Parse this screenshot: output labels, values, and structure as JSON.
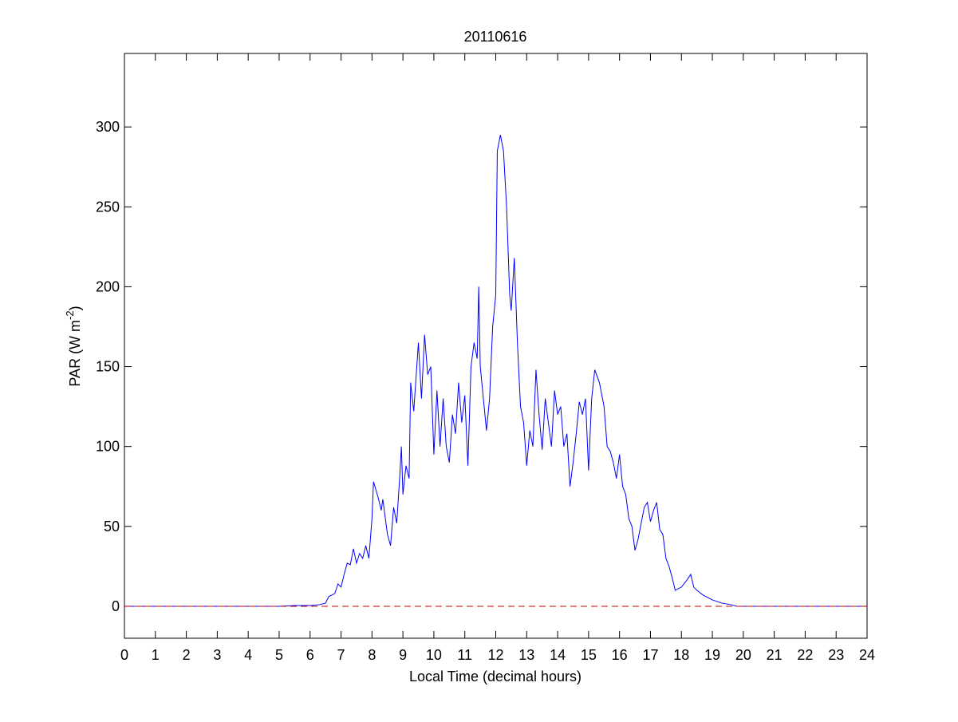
{
  "chart_data": {
    "type": "line",
    "title": "20110616",
    "x_label": "Local Time (decimal hours)",
    "y_label": {
      "text": "PAR (W m",
      "superscript": "-2",
      "suffix": ")"
    },
    "xlim": [
      0,
      24
    ],
    "xticks": [
      0,
      1,
      2,
      3,
      4,
      5,
      6,
      7,
      8,
      9,
      10,
      11,
      12,
      13,
      14,
      15,
      16,
      17,
      18,
      19,
      20,
      21,
      22,
      23,
      24
    ],
    "ylim": [
      -20,
      346
    ],
    "yticks": [
      0,
      50,
      100,
      150,
      200,
      250,
      300
    ],
    "reference_line": {
      "value": 0,
      "color": "#cc0000",
      "style": "dashed"
    },
    "series": [
      {
        "color": "#0000ff",
        "x": [
          0,
          5,
          5.5,
          6,
          6.3,
          6.5,
          6.6,
          6.8,
          6.9,
          7.0,
          7.1,
          7.2,
          7.3,
          7.4,
          7.5,
          7.6,
          7.7,
          7.8,
          7.9,
          8.0,
          8.05,
          8.2,
          8.3,
          8.35,
          8.5,
          8.6,
          8.7,
          8.8,
          8.9,
          8.95,
          9.0,
          9.1,
          9.2,
          9.25,
          9.35,
          9.5,
          9.6,
          9.7,
          9.8,
          9.9,
          10.0,
          10.1,
          10.2,
          10.3,
          10.4,
          10.5,
          10.6,
          10.7,
          10.8,
          10.9,
          11.0,
          11.1,
          11.2,
          11.3,
          11.4,
          11.45,
          11.5,
          11.7,
          11.8,
          11.9,
          12.0,
          12.05,
          12.15,
          12.25,
          12.35,
          12.45,
          12.5,
          12.6,
          12.7,
          12.8,
          12.9,
          13.0,
          13.1,
          13.2,
          13.3,
          13.4,
          13.5,
          13.6,
          13.7,
          13.8,
          13.9,
          14.0,
          14.1,
          14.2,
          14.3,
          14.4,
          14.5,
          14.6,
          14.7,
          14.8,
          14.9,
          15.0,
          15.1,
          15.2,
          15.35,
          15.5,
          15.6,
          15.7,
          15.8,
          15.9,
          16.0,
          16.1,
          16.2,
          16.3,
          16.4,
          16.5,
          16.6,
          16.7,
          16.8,
          16.9,
          17.0,
          17.1,
          17.2,
          17.3,
          17.4,
          17.5,
          17.6,
          17.7,
          17.8,
          18.0,
          18.2,
          18.3,
          18.4,
          18.5,
          18.7,
          19.0,
          19.3,
          19.6,
          19.8,
          20,
          24
        ],
        "values": [
          0,
          0,
          0.5,
          0.5,
          1,
          2,
          6,
          8,
          14,
          12,
          20,
          27,
          26,
          36,
          27,
          33,
          30,
          38,
          30,
          55,
          78,
          68,
          60,
          67,
          45,
          38,
          62,
          52,
          82,
          100,
          70,
          88,
          80,
          140,
          122,
          165,
          130,
          170,
          145,
          150,
          95,
          135,
          100,
          130,
          100,
          90,
          120,
          108,
          140,
          115,
          132,
          88,
          150,
          165,
          155,
          200,
          150,
          110,
          130,
          175,
          195,
          285,
          295,
          285,
          250,
          195,
          185,
          218,
          165,
          125,
          115,
          88,
          110,
          100,
          148,
          120,
          98,
          130,
          115,
          100,
          135,
          120,
          125,
          100,
          108,
          75,
          90,
          108,
          128,
          120,
          130,
          85,
          130,
          148,
          140,
          125,
          100,
          97,
          90,
          80,
          95,
          75,
          70,
          55,
          50,
          35,
          42,
          52,
          62,
          65,
          53,
          60,
          65,
          48,
          45,
          30,
          25,
          18,
          10,
          12,
          17,
          20,
          12,
          10,
          7,
          4,
          2,
          1,
          0,
          0,
          0
        ]
      }
    ]
  }
}
